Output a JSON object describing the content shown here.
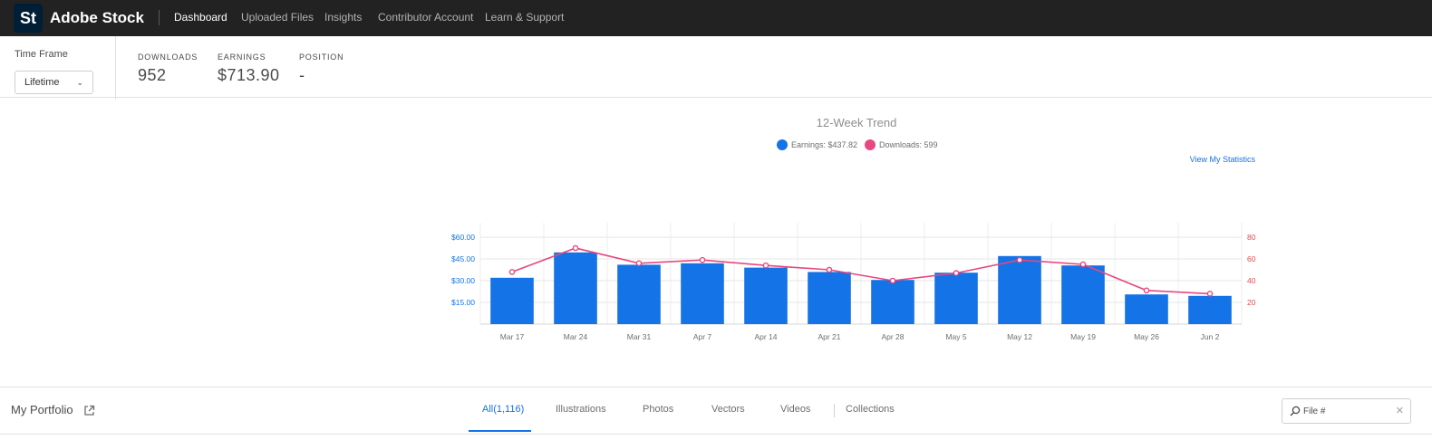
{
  "header": {
    "logo_text": "St",
    "brand": "Adobe Stock",
    "nav": [
      {
        "label": "Dashboard",
        "active": true
      },
      {
        "label": "Uploaded Files",
        "active": false
      },
      {
        "label": "Insights",
        "active": false
      },
      {
        "label": "Contributor Account",
        "active": false
      },
      {
        "label": "Learn & Support",
        "active": false
      }
    ]
  },
  "summary": {
    "timeframe_label": "Time Frame",
    "timeframe_value": "Lifetime",
    "stats": [
      {
        "label": "DOWNLOADS",
        "value": "952"
      },
      {
        "label": "EARNINGS",
        "value": "$713.90"
      },
      {
        "label": "POSITION",
        "value": "-"
      }
    ]
  },
  "trend": {
    "legend": [
      {
        "label": "Earnings: $437.82",
        "color": "#1473e6"
      },
      {
        "label": "Downloads: 599",
        "color": "#e84780"
      }
    ],
    "view_stats_label": "View My Statistics"
  },
  "chart_data": {
    "type": "bar",
    "title": "12-Week Trend",
    "categories": [
      "Mar 17",
      "Mar 24",
      "Mar 31",
      "Apr 7",
      "Apr 14",
      "Apr 21",
      "Apr 28",
      "May 5",
      "May 12",
      "May 19",
      "May 26",
      "Jun 2"
    ],
    "series": [
      {
        "name": "Earnings: $437.82",
        "axis": "left",
        "kind": "bar",
        "color": "#1473e6",
        "values": [
          32,
          49.5,
          41,
          42,
          39,
          36,
          30.5,
          35.5,
          47,
          40.5,
          20.5,
          19.5
        ]
      },
      {
        "name": "Downloads: 599",
        "axis": "right",
        "kind": "line",
        "color": "#e84780",
        "values": [
          48,
          70,
          56,
          59,
          54,
          50,
          40,
          47,
          59,
          55,
          31,
          28
        ]
      }
    ],
    "y_left": {
      "ticks": [
        "$60.00",
        "$45.00",
        "$30.00",
        "$15.00"
      ],
      "tick_values": [
        60,
        45,
        30,
        15
      ],
      "range": [
        0,
        60
      ]
    },
    "y_right": {
      "ticks": [
        "80",
        "60",
        "40",
        "20"
      ],
      "tick_values": [
        80,
        60,
        40,
        20
      ],
      "range": [
        0,
        80
      ]
    },
    "grid": true,
    "legend_position": "top"
  },
  "portfolio": {
    "title": "My Portfolio",
    "tabs": [
      {
        "label": "All(1,116)",
        "active": true
      },
      {
        "label": "Illustrations",
        "active": false
      },
      {
        "label": "Photos",
        "active": false
      },
      {
        "label": "Vectors",
        "active": false
      },
      {
        "label": "Videos",
        "active": false
      },
      {
        "label": "Collections",
        "active": false
      }
    ],
    "search_placeholder": "File #"
  }
}
